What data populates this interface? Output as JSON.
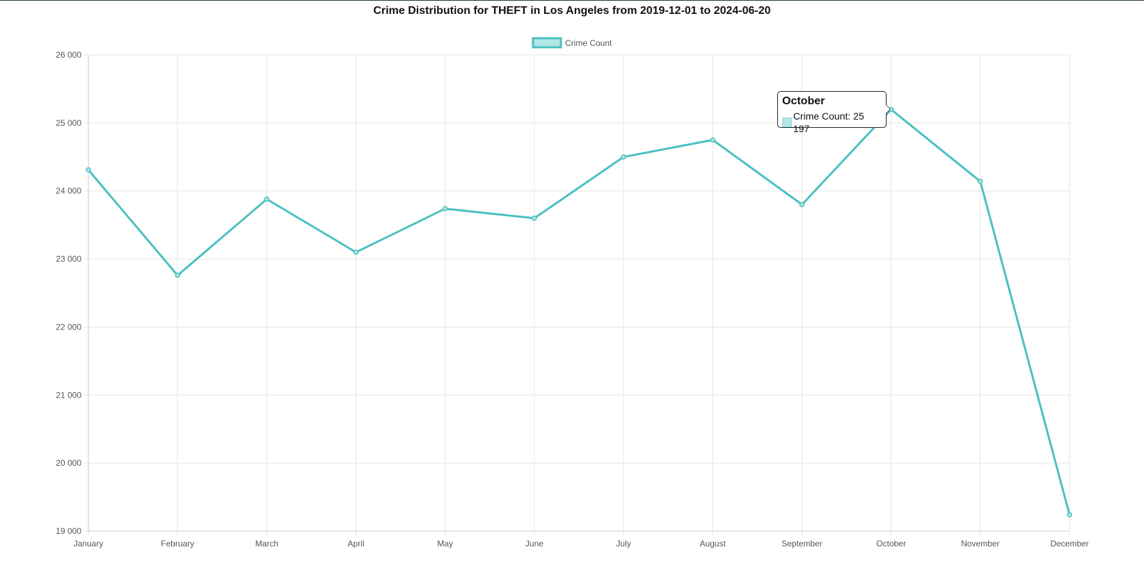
{
  "chart_data": {
    "type": "line",
    "title": "Crime Distribution for THEFT in Los Angeles from 2019-12-01 to 2024-06-20",
    "xlabel": "",
    "ylabel": "",
    "categories": [
      "January",
      "February",
      "March",
      "April",
      "May",
      "June",
      "July",
      "August",
      "September",
      "October",
      "November",
      "December"
    ],
    "series": [
      {
        "name": "Crime Count",
        "values": [
          24310,
          22760,
          23880,
          23100,
          23740,
          23600,
          24500,
          24750,
          23800,
          25197,
          24140,
          19240
        ]
      }
    ],
    "ylim": [
      19000,
      26000
    ],
    "yticks": [
      19000,
      20000,
      21000,
      22000,
      23000,
      24000,
      25000,
      26000
    ],
    "ytick_labels": [
      "19 000",
      "20 000",
      "21 000",
      "22 000",
      "23 000",
      "24 000",
      "25 000",
      "26 000"
    ],
    "grid": true,
    "legend_position": "top-center",
    "colors": {
      "line": "#4bc0c0",
      "fill": "#b3e6e6",
      "grid": "#e5e5e5",
      "axis": "#cccccc"
    },
    "tooltip": {
      "title": "October",
      "label": "Crime Count: 25 197"
    }
  }
}
